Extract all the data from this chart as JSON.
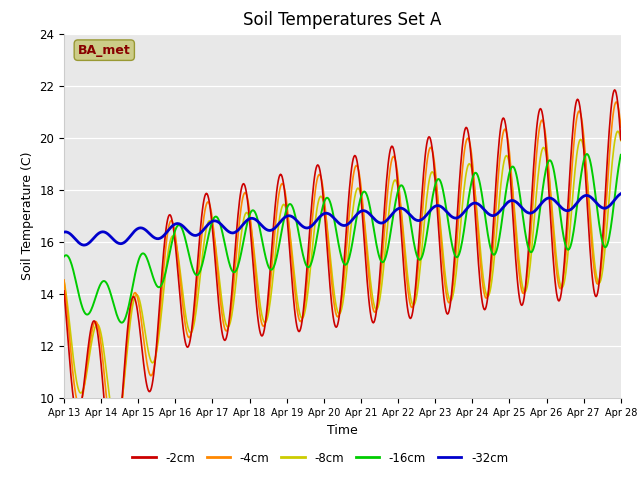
{
  "title": "Soil Temperatures Set A",
  "xlabel": "Time",
  "ylabel": "Soil Temperature (C)",
  "annotation": "BA_met",
  "ylim": [
    10,
    24
  ],
  "xlim": [
    0,
    360
  ],
  "x_tick_labels": [
    "Apr 13",
    "Apr 14",
    "Apr 15",
    "Apr 16",
    "Apr 17",
    "Apr 18",
    "Apr 19",
    "Apr 20",
    "Apr 21",
    "Apr 22",
    "Apr 23",
    "Apr 24",
    "Apr 25",
    "Apr 26",
    "Apr 27",
    "Apr 28"
  ],
  "x_tick_positions": [
    0,
    24,
    48,
    72,
    96,
    120,
    144,
    168,
    192,
    216,
    240,
    264,
    288,
    312,
    336,
    360
  ],
  "y_ticks": [
    10,
    12,
    14,
    16,
    18,
    20,
    22,
    24
  ],
  "series_colors": [
    "#cc0000",
    "#ff8800",
    "#cccc00",
    "#00cc00",
    "#0000cc"
  ],
  "series_labels": [
    "-2cm",
    "-4cm",
    "-8cm",
    "-16cm",
    "-32cm"
  ],
  "background_color": "#e8e8e8",
  "title_fontsize": 12,
  "annotation_box_color": "#cccc88",
  "annotation_text_color": "#880000"
}
